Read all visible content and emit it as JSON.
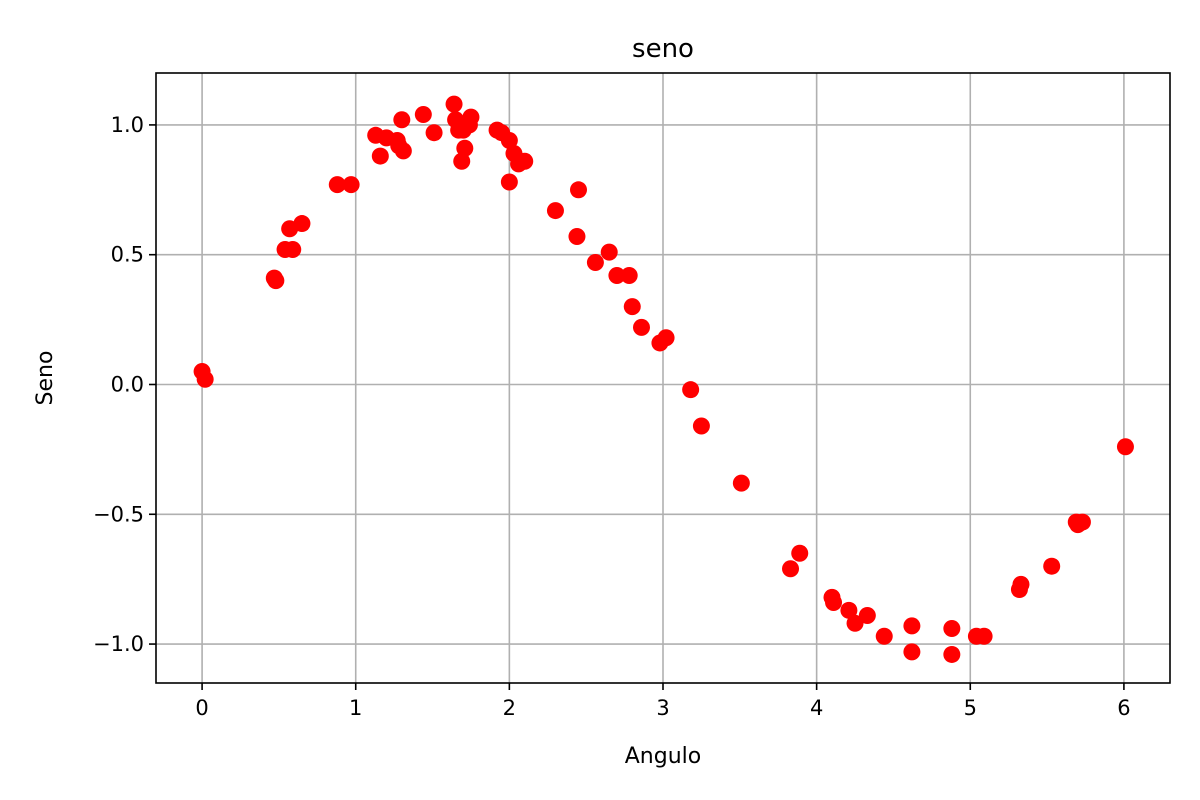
{
  "chart_data": {
    "type": "scatter",
    "title": "seno",
    "xlabel": "Angulo",
    "ylabel": "Seno",
    "xlim": [
      -0.3,
      6.3
    ],
    "ylim": [
      -1.15,
      1.2
    ],
    "xticks": [
      0,
      1,
      2,
      3,
      4,
      5,
      6
    ],
    "xtick_labels": [
      "0",
      "1",
      "2",
      "3",
      "4",
      "5",
      "6"
    ],
    "yticks": [
      -1.0,
      -0.5,
      0.0,
      0.5,
      1.0
    ],
    "ytick_labels": [
      "−1.0",
      "−0.5",
      "0.0",
      "0.5",
      "1.0"
    ],
    "grid": true,
    "marker_color": "#ff0000",
    "series": [
      {
        "x": [
          0.0,
          0.02,
          0.47,
          0.48,
          0.54,
          0.57,
          0.59,
          0.65,
          0.88,
          0.97,
          1.13,
          1.16,
          1.2,
          1.27,
          1.28,
          1.3,
          1.31,
          1.44,
          1.51,
          1.64,
          1.65,
          1.67,
          1.69,
          1.7,
          1.71,
          1.74,
          1.75,
          1.92,
          1.95,
          2.0,
          2.0,
          2.03,
          2.06,
          2.1,
          2.3,
          2.44,
          2.45,
          2.56,
          2.65,
          2.7,
          2.78,
          2.8,
          2.86,
          2.98,
          3.02,
          3.18,
          3.25,
          3.51,
          3.83,
          3.89,
          4.1,
          4.11,
          4.21,
          4.25,
          4.33,
          4.44,
          4.62,
          4.62,
          4.88,
          4.88,
          5.04,
          5.09,
          5.32,
          5.33,
          5.53,
          5.69,
          5.7,
          5.73,
          6.01
        ],
        "y": [
          0.05,
          0.02,
          0.41,
          0.4,
          0.52,
          0.6,
          0.52,
          0.62,
          0.77,
          0.77,
          0.96,
          0.88,
          0.95,
          0.94,
          0.92,
          1.02,
          0.9,
          1.04,
          0.97,
          1.08,
          1.02,
          0.98,
          0.86,
          0.98,
          0.91,
          1.0,
          1.03,
          0.98,
          0.97,
          0.94,
          0.78,
          0.89,
          0.85,
          0.86,
          0.67,
          0.57,
          0.75,
          0.47,
          0.51,
          0.42,
          0.42,
          0.3,
          0.22,
          0.16,
          0.18,
          -0.02,
          -0.16,
          -0.38,
          -0.71,
          -0.65,
          -0.82,
          -0.84,
          -0.87,
          -0.92,
          -0.89,
          -0.97,
          -0.93,
          -1.03,
          -0.94,
          -1.04,
          -0.97,
          -0.97,
          -0.79,
          -0.77,
          -0.7,
          -0.53,
          -0.54,
          -0.53,
          -0.24
        ]
      }
    ]
  }
}
